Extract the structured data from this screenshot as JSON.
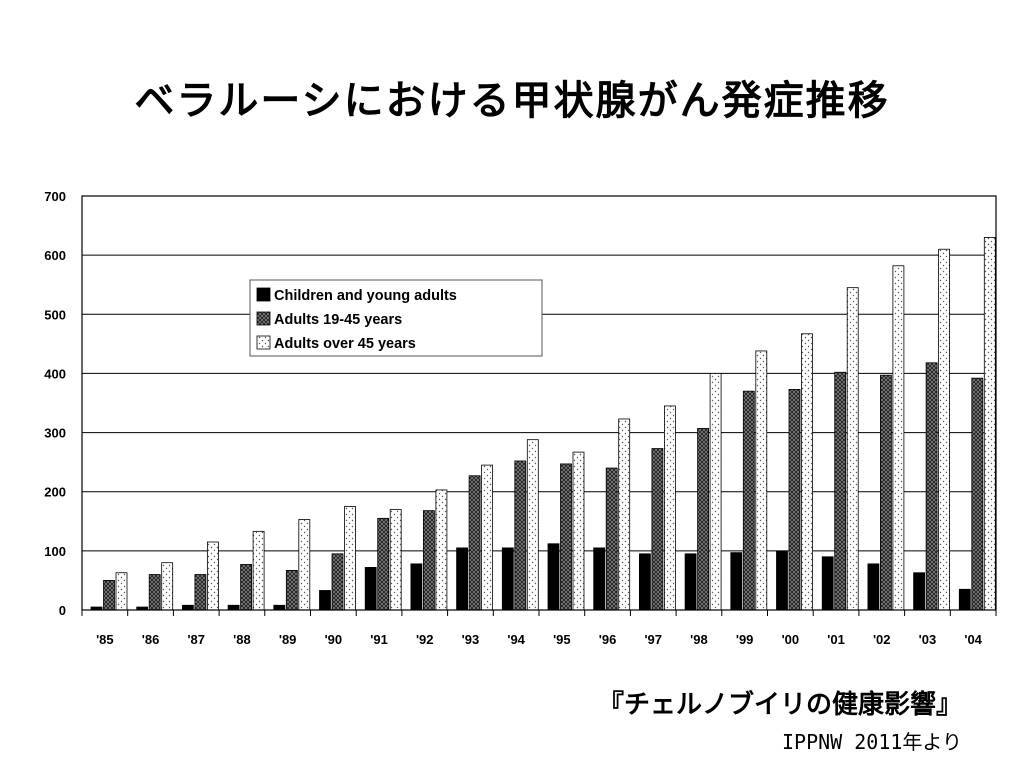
{
  "slide": {
    "title": "ベラルーシにおける甲状腺がん発症推移",
    "source_book": "『チェルノブイリの健康影響』",
    "source_org": "IPPNW 2011年より"
  },
  "chart_data": {
    "type": "bar",
    "categories": [
      "'85",
      "'86",
      "'87",
      "'88",
      "'89",
      "'90",
      "'91",
      "'92",
      "'93",
      "'94",
      "'95",
      "'96",
      "'97",
      "'98",
      "'99",
      "'00",
      "'01",
      "'02",
      "'03",
      "'04"
    ],
    "ylim": [
      0,
      700
    ],
    "yticks": [
      0,
      100,
      200,
      300,
      400,
      500,
      600,
      700
    ],
    "grid": true,
    "legend_position": "upper-left",
    "series": [
      {
        "name": "Children and young adults",
        "pattern": "solid-black",
        "values": [
          5,
          5,
          8,
          8,
          8,
          33,
          72,
          78,
          105,
          105,
          112,
          105,
          95,
          95,
          97,
          100,
          90,
          78,
          63,
          35
        ]
      },
      {
        "name": "Adults 19-45 years",
        "pattern": "dark-crosshatch",
        "values": [
          50,
          60,
          60,
          77,
          67,
          95,
          155,
          168,
          227,
          252,
          247,
          240,
          273,
          307,
          370,
          373,
          402,
          397,
          418,
          392
        ]
      },
      {
        "name": "Adults over 45 years",
        "pattern": "light-dots",
        "values": [
          63,
          80,
          115,
          133,
          153,
          175,
          170,
          203,
          245,
          288,
          267,
          323,
          345,
          400,
          438,
          467,
          545,
          582,
          610,
          630
        ]
      }
    ]
  }
}
